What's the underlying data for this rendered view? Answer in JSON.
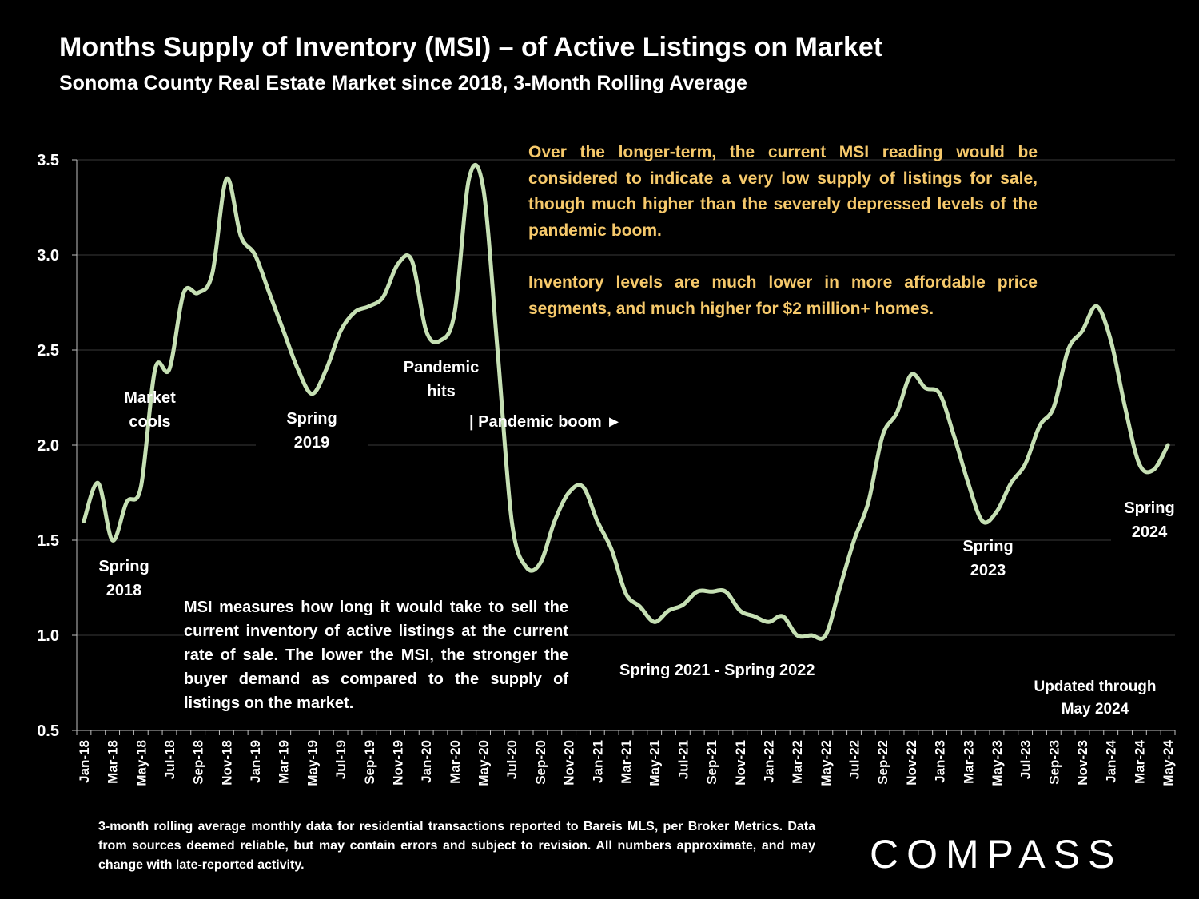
{
  "title": "Months Supply of Inventory (MSI) – of Active Listings on Market",
  "subtitle": "Sonoma County Real Estate Market since 2018, 3-Month Rolling Average",
  "notes": {
    "gold_1": "Over the longer-term, the current MSI reading would be considered to indicate a very low supply of listings for sale, though much higher than the severely depressed levels of the pandemic boom.",
    "gold_2": "Inventory levels are much lower in more affordable price segments, and much higher for $2 million+ homes.",
    "msi_definition": "MSI measures how long it would take to sell the current inventory of active listings at the current rate of sale. The lower the MSI, the stronger the buyer demand as compared to the supply of listings on the market."
  },
  "annotations": {
    "spring_2018": [
      "Spring",
      "2018"
    ],
    "market_cools": [
      "Market",
      "cools"
    ],
    "spring_2019": [
      "Spring",
      "2019"
    ],
    "pandemic_hits": [
      "Pandemic",
      "hits"
    ],
    "pandemic_boom": "| Pandemic boom ►",
    "spring_2021_2022": "Spring 2021 - Spring 2022",
    "spring_2023": [
      "Spring",
      "2023"
    ],
    "spring_2024": [
      "Spring",
      "2024"
    ],
    "updated": [
      "Updated through",
      "May 2024"
    ]
  },
  "footnote": "3-month rolling average monthly data for residential transactions reported to Bareis MLS, per Broker Metrics. Data from sources deemed reliable, but may contain errors and subject to revision. All numbers approximate, and may change with late-reported activity.",
  "logo": "COMPASS",
  "colors": {
    "line": "#c6e0b4",
    "gold": "#f6c96b",
    "grid": "#3a3a3a"
  },
  "chart_data": {
    "type": "line",
    "title": "Months Supply of Inventory (MSI) – of Active Listings on Market",
    "xlabel": "",
    "ylabel": "",
    "ylim": [
      0.5,
      3.5
    ],
    "yticks": [
      "0.5",
      "1.0",
      "1.5",
      "2.0",
      "2.5",
      "3.0",
      "3.5"
    ],
    "x_tick_labels": [
      "Jan-18",
      "Mar-18",
      "May-18",
      "Jul-18",
      "Sep-18",
      "Nov-18",
      "Jan-19",
      "Mar-19",
      "May-19",
      "Jul-19",
      "Sep-19",
      "Nov-19",
      "Jan-20",
      "Mar-20",
      "May-20",
      "Jul-20",
      "Sep-20",
      "Nov-20",
      "Jan-21",
      "Mar-21",
      "May-21",
      "Jul-21",
      "Sep-21",
      "Nov-21",
      "Jan-22",
      "Mar-22",
      "May-22",
      "Jul-22",
      "Sep-22",
      "Nov-22",
      "Jan-23",
      "Mar-23",
      "May-23",
      "Jul-23",
      "Sep-23",
      "Nov-23",
      "Jan-24",
      "Mar-24",
      "May-24"
    ],
    "grid": true,
    "series": [
      {
        "name": "MSI",
        "values": [
          1.6,
          1.8,
          1.5,
          1.7,
          1.78,
          2.4,
          2.4,
          2.8,
          2.8,
          2.9,
          3.4,
          3.1,
          3.0,
          2.8,
          2.6,
          2.4,
          2.27,
          2.4,
          2.6,
          2.7,
          2.73,
          2.78,
          2.95,
          2.97,
          2.6,
          2.55,
          2.7,
          3.4,
          3.35,
          2.5,
          1.6,
          1.36,
          1.38,
          1.6,
          1.75,
          1.78,
          1.6,
          1.45,
          1.22,
          1.15,
          1.07,
          1.13,
          1.16,
          1.23,
          1.23,
          1.23,
          1.13,
          1.1,
          1.07,
          1.1,
          1.0,
          1.0,
          1.0,
          1.25,
          1.5,
          1.7,
          2.05,
          2.17,
          2.37,
          2.3,
          2.27,
          2.05,
          1.8,
          1.6,
          1.65,
          1.8,
          1.9,
          2.1,
          2.2,
          2.5,
          2.6,
          2.73,
          2.55,
          2.2,
          1.9,
          1.87,
          2.0
        ]
      }
    ]
  }
}
